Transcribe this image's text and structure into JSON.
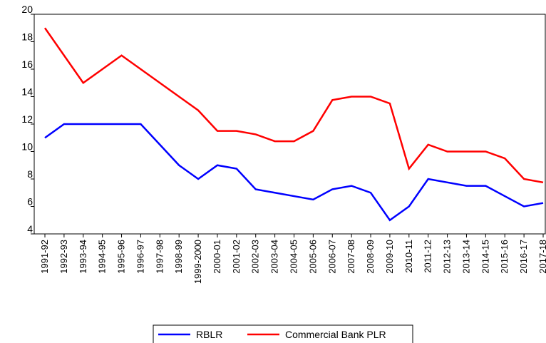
{
  "chart_data": {
    "type": "line",
    "categories": [
      "1991-92",
      "1992-93",
      "1993-94",
      "1994-95",
      "1995-96",
      "1996-97",
      "1997-98",
      "1998-99",
      "1999-2000",
      "2000-01",
      "2001-02",
      "2002-03",
      "2003-04",
      "2004-05",
      "2005-06",
      "2006-07",
      "2007-08",
      "2008-09",
      "2009-10",
      "2010-11",
      "2011-12",
      "2012-13",
      "2013-14",
      "2014-15",
      "2015-16",
      "2016-17",
      "2017-18"
    ],
    "series": [
      {
        "name": "RBLR",
        "color": "#0000ff",
        "values": [
          11,
          12,
          12,
          12,
          12,
          12,
          10.5,
          9,
          8,
          9,
          8.75,
          7.25,
          7,
          6.75,
          6.5,
          7.25,
          7.5,
          7,
          5,
          6,
          8,
          7.75,
          7.5,
          7.5,
          6.75,
          6,
          6.25
        ]
      },
      {
        "name": "Commercial Bank PLR",
        "color": "#ff0000",
        "values": [
          19,
          17,
          15,
          16,
          17,
          16,
          15,
          14,
          13,
          11.5,
          11.5,
          11.25,
          10.75,
          10.75,
          11.5,
          13.75,
          14,
          14,
          13.5,
          8.75,
          10.5,
          10,
          10,
          10,
          9.5,
          8,
          7.75
        ]
      }
    ],
    "ylim": [
      4,
      20
    ],
    "yticks": [
      4,
      6,
      8,
      10,
      12,
      14,
      16,
      18,
      20
    ],
    "legend": "bottom"
  }
}
